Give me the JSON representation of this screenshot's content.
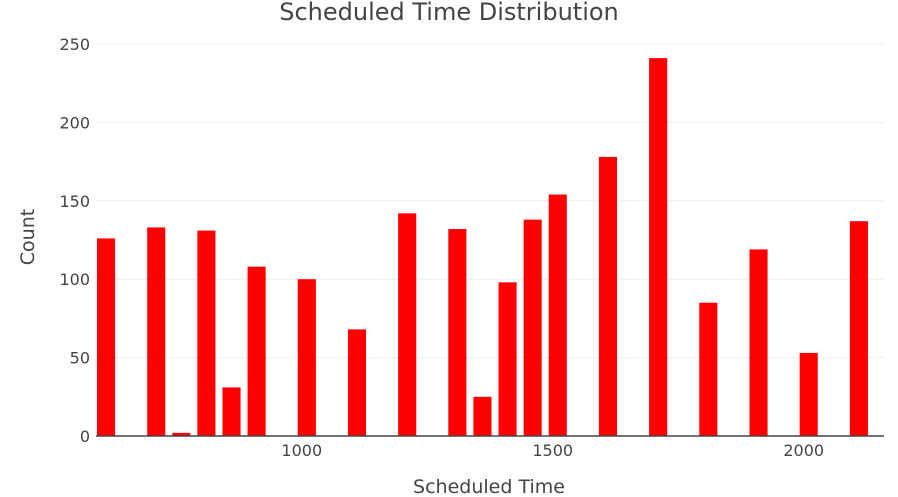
{
  "chart_data": {
    "type": "bar",
    "title": "Scheduled Time Distribution",
    "xlabel": "Scheduled Time",
    "ylabel": "Count",
    "xlim": [
      590,
      2160
    ],
    "ylim": [
      0,
      250
    ],
    "x_ticks": [
      1000,
      1500,
      2000
    ],
    "y_ticks": [
      0,
      50,
      100,
      150,
      200,
      250
    ],
    "bar_width": 36,
    "grid": true,
    "legend": false,
    "color": "#ff0000",
    "bars": [
      {
        "x": 610,
        "value": 126
      },
      {
        "x": 710,
        "value": 133
      },
      {
        "x": 760,
        "value": 2
      },
      {
        "x": 810,
        "value": 131
      },
      {
        "x": 860,
        "value": 31
      },
      {
        "x": 910,
        "value": 108
      },
      {
        "x": 1010,
        "value": 100
      },
      {
        "x": 1110,
        "value": 68
      },
      {
        "x": 1210,
        "value": 142
      },
      {
        "x": 1310,
        "value": 132
      },
      {
        "x": 1360,
        "value": 25
      },
      {
        "x": 1410,
        "value": 98
      },
      {
        "x": 1460,
        "value": 138
      },
      {
        "x": 1510,
        "value": 154
      },
      {
        "x": 1610,
        "value": 178
      },
      {
        "x": 1710,
        "value": 241
      },
      {
        "x": 1810,
        "value": 85
      },
      {
        "x": 1910,
        "value": 119
      },
      {
        "x": 2010,
        "value": 53
      },
      {
        "x": 2110,
        "value": 137
      }
    ]
  }
}
